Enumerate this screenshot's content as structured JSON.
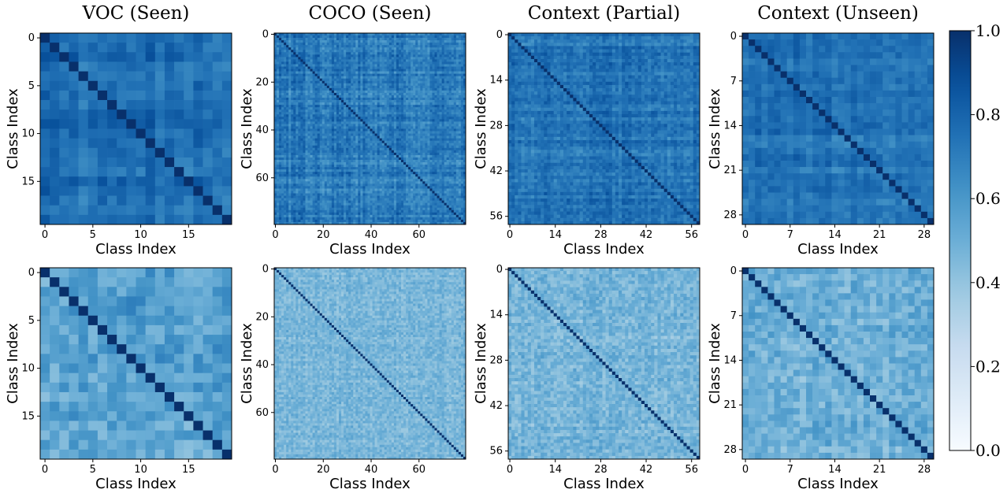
{
  "chart_data": {
    "type": "heatmap",
    "description_free": true,
    "colormap": "Blues",
    "grid": false,
    "colorbar": {
      "range": [
        0.0,
        1.0
      ],
      "ticks": [
        "0.0",
        "0.2",
        "0.4",
        "0.6",
        "0.8",
        "1.0"
      ],
      "tick_values": [
        0.0,
        0.2,
        0.4,
        0.6,
        0.8,
        1.0
      ],
      "position": "right"
    },
    "columns": [
      {
        "title": "VOC (Seen)",
        "n_classes": 20,
        "ticks": [
          "0",
          "5",
          "10",
          "15"
        ],
        "tick_values": [
          0,
          5,
          10,
          15
        ],
        "top_level": 0.76,
        "top_spread": 0.06,
        "bottom_level": 0.55,
        "bottom_spread": 0.1
      },
      {
        "title": "COCO (Seen)",
        "n_classes": 80,
        "ticks": [
          "0",
          "20",
          "40",
          "60"
        ],
        "tick_values": [
          0,
          20,
          40,
          60
        ],
        "top_level": 0.71,
        "top_spread": 0.07,
        "bottom_level": 0.46,
        "bottom_spread": 0.07
      },
      {
        "title": "Context (Partial)",
        "n_classes": 59,
        "ticks": [
          "0",
          "14",
          "28",
          "42",
          "56"
        ],
        "tick_values": [
          0,
          14,
          28,
          42,
          56
        ],
        "top_level": 0.74,
        "top_spread": 0.06,
        "bottom_level": 0.47,
        "bottom_spread": 0.08
      },
      {
        "title": "Context (Unseen)",
        "n_classes": 30,
        "ticks": [
          "0",
          "7",
          "14",
          "21",
          "28"
        ],
        "tick_values": [
          0,
          7,
          14,
          21,
          28
        ],
        "top_level": 0.74,
        "top_spread": 0.05,
        "bottom_level": 0.5,
        "bottom_spread": 0.09
      }
    ],
    "diagonal_value": 1.0,
    "xlabel": "Class Index",
    "ylabel": "Class Index"
  }
}
